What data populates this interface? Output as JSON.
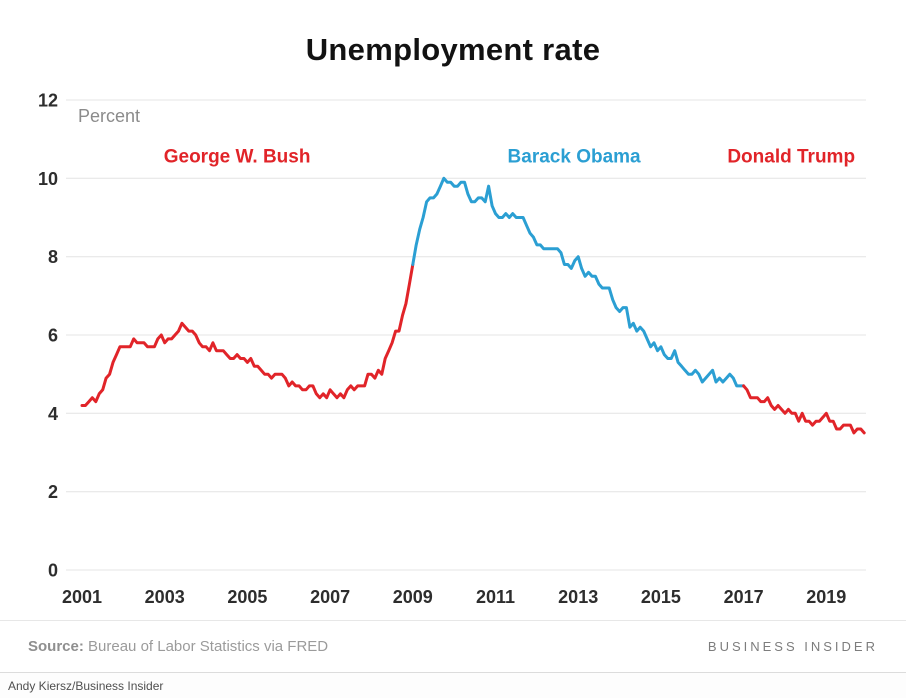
{
  "title": "Unemployment rate",
  "chart_data": {
    "type": "line",
    "title": "Unemployment rate",
    "ylabel": "Percent",
    "xlabel": "",
    "ylim": [
      0,
      12
    ],
    "xlim": [
      2001,
      2020
    ],
    "grid": true,
    "yticks": [
      0,
      2,
      4,
      6,
      8,
      10,
      12
    ],
    "xticks": [
      2001,
      2003,
      2005,
      2007,
      2009,
      2011,
      2013,
      2015,
      2017,
      2019
    ],
    "x_unit": "month",
    "x_start_year": 2001,
    "values": [
      4.2,
      4.2,
      4.3,
      4.4,
      4.3,
      4.5,
      4.6,
      4.9,
      5.0,
      5.3,
      5.5,
      5.7,
      5.7,
      5.7,
      5.7,
      5.9,
      5.8,
      5.8,
      5.8,
      5.7,
      5.7,
      5.7,
      5.9,
      6.0,
      5.8,
      5.9,
      5.9,
      6.0,
      6.1,
      6.3,
      6.2,
      6.1,
      6.1,
      6.0,
      5.8,
      5.7,
      5.7,
      5.6,
      5.8,
      5.6,
      5.6,
      5.6,
      5.5,
      5.4,
      5.4,
      5.5,
      5.4,
      5.4,
      5.3,
      5.4,
      5.2,
      5.2,
      5.1,
      5.0,
      5.0,
      4.9,
      5.0,
      5.0,
      5.0,
      4.9,
      4.7,
      4.8,
      4.7,
      4.7,
      4.6,
      4.6,
      4.7,
      4.7,
      4.5,
      4.4,
      4.5,
      4.4,
      4.6,
      4.5,
      4.4,
      4.5,
      4.4,
      4.6,
      4.7,
      4.6,
      4.7,
      4.7,
      4.7,
      5.0,
      5.0,
      4.9,
      5.1,
      5.0,
      5.4,
      5.6,
      5.8,
      6.1,
      6.1,
      6.5,
      6.8,
      7.3,
      7.8,
      8.3,
      8.7,
      9.0,
      9.4,
      9.5,
      9.5,
      9.6,
      9.8,
      10.0,
      9.9,
      9.9,
      9.8,
      9.8,
      9.9,
      9.9,
      9.6,
      9.4,
      9.4,
      9.5,
      9.5,
      9.4,
      9.8,
      9.3,
      9.1,
      9.0,
      9.0,
      9.1,
      9.0,
      9.1,
      9.0,
      9.0,
      9.0,
      8.8,
      8.6,
      8.5,
      8.3,
      8.3,
      8.2,
      8.2,
      8.2,
      8.2,
      8.2,
      8.1,
      7.8,
      7.8,
      7.7,
      7.9,
      8.0,
      7.7,
      7.5,
      7.6,
      7.5,
      7.5,
      7.3,
      7.2,
      7.2,
      7.2,
      6.9,
      6.7,
      6.6,
      6.7,
      6.7,
      6.2,
      6.3,
      6.1,
      6.2,
      6.1,
      5.9,
      5.7,
      5.8,
      5.6,
      5.7,
      5.5,
      5.4,
      5.4,
      5.6,
      5.3,
      5.2,
      5.1,
      5.0,
      5.0,
      5.1,
      5.0,
      4.8,
      4.9,
      5.0,
      5.1,
      4.8,
      4.9,
      4.8,
      4.9,
      5.0,
      4.9,
      4.7,
      4.7,
      4.7,
      4.6,
      4.4,
      4.4,
      4.4,
      4.3,
      4.3,
      4.4,
      4.2,
      4.1,
      4.2,
      4.1,
      4.0,
      4.1,
      4.0,
      4.0,
      3.8,
      4.0,
      3.8,
      3.8,
      3.7,
      3.8,
      3.8,
      3.9,
      4.0,
      3.8,
      3.8,
      3.6,
      3.6,
      3.7,
      3.7,
      3.7,
      3.5,
      3.6,
      3.6,
      3.5
    ],
    "segments": [
      {
        "id": "bush",
        "president": "George W. Bush",
        "color": "#e12429",
        "range": [
          0,
          96
        ]
      },
      {
        "id": "obama",
        "president": "Barack Obama",
        "color": "#2b9fd3",
        "range": [
          96,
          192
        ]
      },
      {
        "id": "trump",
        "president": "Donald Trump",
        "color": "#e12429",
        "range": [
          192,
          227
        ]
      }
    ],
    "annotations": [
      {
        "id": "bush",
        "label": "George W. Bush",
        "color": "#e12429",
        "x_year": 2004.75,
        "y_value": 10.4
      },
      {
        "id": "obama",
        "label": "Barack Obama",
        "color": "#2b9fd3",
        "x_year": 2012.9,
        "y_value": 10.4
      },
      {
        "id": "trump",
        "label": "Donald Trump",
        "color": "#e12429",
        "x_year": 2018.15,
        "y_value": 10.4
      }
    ],
    "legend_position": "none",
    "grid_color": "#e4e4e4"
  },
  "footer": {
    "source_label": "Source:",
    "source_text": "Bureau of Labor Statistics via FRED",
    "brand": "BUSINESS INSIDER"
  },
  "credit": "Andy Kiersz/Business Insider"
}
